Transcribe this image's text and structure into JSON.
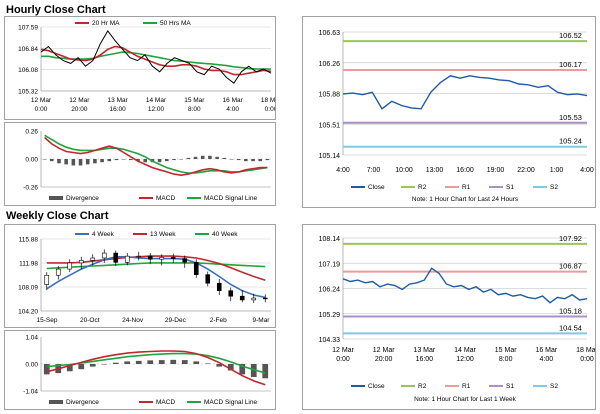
{
  "sections": {
    "hourly_title": "Hourly Close Chart",
    "weekly_title": "Weekly Close Chart"
  },
  "colors": {
    "close": "#1f5aa6",
    "ma_short": "#c0282e",
    "ma_long": "#22a33d",
    "r2": "#9bc55a",
    "r1": "#e89c9c",
    "s1": "#a890c8",
    "s2": "#7fc8e8",
    "divergence": "#555555",
    "macd": "#c0282e",
    "signal": "#22a33d",
    "week4": "#3a6fbf",
    "week13": "#c0282e",
    "week40": "#22a33d",
    "candle": "#000000"
  },
  "chart_data": [
    {
      "id": "hourly_price",
      "type": "line",
      "legend": [
        "20 Hr MA",
        "50 Hrs MA"
      ],
      "x_ticks": [
        "12 Mar\n0:00",
        "12 Mar\n20:00",
        "13 Mar\n16:00",
        "14 Mar\n12:00",
        "15 Mar\n8:00",
        "16 Mar\n4:00",
        "18 Mar\n0:00"
      ],
      "y_ticks": [
        "107.59",
        "106.84",
        "106.08",
        "105.32"
      ],
      "ylim": [
        105.32,
        107.59
      ],
      "series": [
        {
          "name": "Close",
          "values": [
            106.7,
            106.9,
            106.6,
            106.4,
            106.3,
            106.5,
            106.2,
            106.4,
            107.0,
            107.45,
            107.1,
            106.8,
            106.5,
            106.4,
            106.6,
            106.2,
            106.0,
            106.3,
            106.5,
            106.4,
            106.3,
            106.0,
            105.9,
            106.2,
            106.1,
            105.8,
            105.6,
            106.0,
            106.2,
            106.0,
            106.1,
            105.95
          ]
        },
        {
          "name": "20 Hr MA",
          "values": [
            106.8,
            106.75,
            106.65,
            106.55,
            106.45,
            106.42,
            106.4,
            106.45,
            106.6,
            106.8,
            106.9,
            106.85,
            106.7,
            106.55,
            106.45,
            106.35,
            106.25,
            106.2,
            106.2,
            106.25,
            106.25,
            106.2,
            106.1,
            106.05,
            106.05,
            106.0,
            105.9,
            105.9,
            105.95,
            106.0,
            106.05,
            106.02
          ]
        },
        {
          "name": "50 Hrs MA",
          "values": [
            106.55,
            106.55,
            106.5,
            106.48,
            106.45,
            106.45,
            106.45,
            106.48,
            106.55,
            106.6,
            106.65,
            106.7,
            106.68,
            106.65,
            106.6,
            106.55,
            106.5,
            106.45,
            106.4,
            106.38,
            106.35,
            106.32,
            106.3,
            106.28,
            106.25,
            106.22,
            106.18,
            106.15,
            106.12,
            106.1,
            106.1,
            106.1
          ]
        }
      ]
    },
    {
      "id": "hourly_macd",
      "type": "line",
      "legend": [
        "Divergence",
        "MACD",
        "MACD Signal Line"
      ],
      "y_ticks": [
        "0.26",
        "0.00",
        "-0.26"
      ],
      "ylim": [
        -0.26,
        0.26
      ],
      "series": [
        {
          "name": "Divergence",
          "values": [
            0.0,
            -0.02,
            -0.04,
            -0.05,
            -0.06,
            -0.06,
            -0.05,
            -0.04,
            -0.03,
            -0.02,
            -0.01,
            0.0,
            -0.01,
            -0.02,
            -0.03,
            -0.03,
            -0.03,
            -0.02,
            -0.01,
            0.0,
            0.01,
            0.02,
            0.03,
            0.03,
            0.02,
            0.01,
            0.0,
            -0.01,
            -0.02,
            -0.02,
            -0.02,
            -0.01
          ]
        },
        {
          "name": "MACD",
          "values": [
            0.2,
            0.14,
            0.1,
            0.07,
            0.06,
            0.05,
            0.06,
            0.08,
            0.1,
            0.12,
            0.1,
            0.06,
            0.02,
            -0.02,
            -0.05,
            -0.08,
            -0.1,
            -0.12,
            -0.14,
            -0.15,
            -0.14,
            -0.12,
            -0.1,
            -0.09,
            -0.1,
            -0.12,
            -0.13,
            -0.12,
            -0.1,
            -0.09,
            -0.08,
            -0.08
          ]
        },
        {
          "name": "MACD Signal Line",
          "values": [
            0.22,
            0.18,
            0.14,
            0.11,
            0.09,
            0.08,
            0.08,
            0.08,
            0.09,
            0.1,
            0.1,
            0.09,
            0.07,
            0.05,
            0.02,
            -0.02,
            -0.05,
            -0.08,
            -0.1,
            -0.12,
            -0.13,
            -0.13,
            -0.12,
            -0.11,
            -0.11,
            -0.11,
            -0.12,
            -0.12,
            -0.11,
            -0.1,
            -0.09,
            -0.08
          ]
        }
      ]
    },
    {
      "id": "hourly_24h",
      "type": "line",
      "x_ticks": [
        "4:00",
        "7:00",
        "10:00",
        "13:00",
        "16:00",
        "19:00",
        "22:00",
        "1:00",
        "4:00"
      ],
      "y_ticks": [
        "106.63",
        "106.26",
        "105.88",
        "105.51",
        "105.14"
      ],
      "ylim": [
        105.14,
        106.63
      ],
      "levels": [
        {
          "name": "R2",
          "value": 106.52,
          "label": "106.52"
        },
        {
          "name": "R1",
          "value": 106.17,
          "label": "106.17"
        },
        {
          "name": "S1",
          "value": 105.53,
          "label": "105.53"
        },
        {
          "name": "S2",
          "value": 105.24,
          "label": "105.24"
        }
      ],
      "series": [
        {
          "name": "Close",
          "values": [
            105.88,
            105.89,
            105.87,
            105.9,
            105.7,
            105.79,
            105.74,
            105.71,
            105.7,
            105.9,
            106.02,
            106.1,
            106.07,
            106.1,
            106.08,
            106.07,
            106.05,
            106.04,
            106.0,
            105.99,
            105.96,
            105.98,
            105.9,
            105.87,
            105.88,
            105.86
          ]
        }
      ],
      "legend": [
        "Close",
        "R2",
        "R1",
        "S1",
        "S2"
      ],
      "note": "Note: 1 Hour Chart for Last 24 Hours"
    },
    {
      "id": "weekly_price",
      "type": "line",
      "legend": [
        "4 Week",
        "13 Week",
        "40 Week"
      ],
      "x_ticks": [
        "15-Sep",
        "20-Oct",
        "24-Nov",
        "29-Dec",
        "2-Feb",
        "9-Mar"
      ],
      "y_ticks": [
        "115.88",
        "111.98",
        "108.09",
        "104.20"
      ],
      "ylim": [
        104.2,
        115.88
      ],
      "candles": [
        {
          "o": 108.5,
          "h": 110.5,
          "l": 107.6,
          "c": 110.0
        },
        {
          "o": 110.0,
          "h": 111.5,
          "l": 109.3,
          "c": 111.0
        },
        {
          "o": 111.0,
          "h": 112.6,
          "l": 110.5,
          "c": 112.0
        },
        {
          "o": 112.0,
          "h": 113.0,
          "l": 111.0,
          "c": 112.4
        },
        {
          "o": 112.4,
          "h": 113.4,
          "l": 111.6,
          "c": 112.8
        },
        {
          "o": 112.8,
          "h": 114.2,
          "l": 112.0,
          "c": 113.6
        },
        {
          "o": 113.6,
          "h": 114.0,
          "l": 111.5,
          "c": 112.1
        },
        {
          "o": 112.1,
          "h": 113.6,
          "l": 111.6,
          "c": 113.1
        },
        {
          "o": 113.1,
          "h": 113.8,
          "l": 112.4,
          "c": 113.1
        },
        {
          "o": 113.1,
          "h": 113.6,
          "l": 111.8,
          "c": 112.6
        },
        {
          "o": 112.6,
          "h": 113.4,
          "l": 111.6,
          "c": 112.9
        },
        {
          "o": 112.9,
          "h": 113.5,
          "l": 112.0,
          "c": 112.7
        },
        {
          "o": 112.7,
          "h": 113.2,
          "l": 111.2,
          "c": 112.1
        },
        {
          "o": 112.1,
          "h": 112.6,
          "l": 109.6,
          "c": 110.1
        },
        {
          "o": 110.1,
          "h": 110.6,
          "l": 108.2,
          "c": 108.7
        },
        {
          "o": 108.7,
          "h": 109.4,
          "l": 106.8,
          "c": 107.5
        },
        {
          "o": 107.5,
          "h": 108.0,
          "l": 105.8,
          "c": 106.6
        },
        {
          "o": 106.6,
          "h": 107.6,
          "l": 105.6,
          "c": 106.0
        },
        {
          "o": 106.0,
          "h": 107.0,
          "l": 105.5,
          "c": 106.3
        },
        {
          "o": 106.3,
          "h": 106.9,
          "l": 105.6,
          "c": 106.2
        }
      ],
      "series": [
        {
          "name": "4 Week",
          "values": [
            107.8,
            109.0,
            110.0,
            111.0,
            111.8,
            112.5,
            113.0,
            113.0,
            112.8,
            112.7,
            112.7,
            112.7,
            112.6,
            112.0,
            111.0,
            109.8,
            108.5,
            107.5,
            106.8,
            106.4
          ]
        },
        {
          "name": "13 Week",
          "values": [
            112.0,
            112.0,
            112.0,
            112.1,
            112.3,
            112.5,
            112.7,
            112.9,
            113.0,
            113.1,
            113.1,
            113.1,
            113.0,
            112.8,
            112.4,
            111.9,
            111.2,
            110.5,
            109.8,
            109.2
          ]
        },
        {
          "name": "40 Week",
          "values": [
            111.1,
            111.2,
            111.3,
            111.4,
            111.5,
            111.6,
            111.7,
            111.8,
            111.9,
            112.0,
            112.0,
            112.0,
            112.0,
            112.0,
            111.9,
            111.8,
            111.7,
            111.6,
            111.5,
            111.4
          ]
        }
      ]
    },
    {
      "id": "weekly_macd",
      "type": "line",
      "legend": [
        "Divergence",
        "MACD",
        "MACD Signal Line"
      ],
      "y_ticks": [
        "1.04",
        "0.00",
        "-1.04"
      ],
      "ylim": [
        -1.04,
        1.04
      ],
      "series": [
        {
          "name": "Divergence",
          "values": [
            -0.4,
            -0.35,
            -0.28,
            -0.2,
            -0.1,
            -0.02,
            0.05,
            0.1,
            0.12,
            0.14,
            0.15,
            0.16,
            0.15,
            0.1,
            0.02,
            -0.1,
            -0.25,
            -0.4,
            -0.5,
            -0.55
          ]
        },
        {
          "name": "MACD",
          "values": [
            -0.3,
            -0.18,
            -0.06,
            0.06,
            0.18,
            0.28,
            0.36,
            0.42,
            0.46,
            0.48,
            0.5,
            0.5,
            0.48,
            0.4,
            0.25,
            0.05,
            -0.2,
            -0.45,
            -0.65,
            -0.8
          ]
        },
        {
          "name": "MACD Signal Line",
          "values": [
            -0.1,
            -0.06,
            -0.02,
            0.04,
            0.1,
            0.16,
            0.22,
            0.28,
            0.32,
            0.36,
            0.38,
            0.4,
            0.4,
            0.38,
            0.32,
            0.22,
            0.08,
            -0.08,
            -0.22,
            -0.35
          ]
        }
      ]
    },
    {
      "id": "weekly_1w",
      "type": "line",
      "x_ticks": [
        "12 Mar\n0:00",
        "12 Mar\n20:00",
        "13 Mar\n16:00",
        "14 Mar\n12:00",
        "15 Mar\n8:00",
        "16 Mar\n4:00",
        "18 Mar\n0:00"
      ],
      "y_ticks": [
        "108.14",
        "107.19",
        "106.24",
        "105.29",
        "104.33"
      ],
      "ylim": [
        104.33,
        108.14
      ],
      "levels": [
        {
          "name": "R2",
          "value": 107.92,
          "label": "107.92"
        },
        {
          "name": "R1",
          "value": 106.87,
          "label": "106.87"
        },
        {
          "name": "S1",
          "value": 105.18,
          "label": "105.18"
        },
        {
          "name": "S2",
          "value": 104.54,
          "label": "104.54"
        }
      ],
      "series": [
        {
          "name": "Close",
          "values": [
            106.6,
            106.5,
            106.55,
            106.45,
            106.5,
            106.3,
            106.4,
            106.35,
            106.2,
            106.4,
            106.45,
            106.55,
            107.0,
            106.8,
            106.4,
            106.3,
            106.35,
            106.2,
            106.3,
            106.1,
            106.2,
            106.0,
            106.05,
            105.95,
            106.0,
            105.9,
            105.85,
            105.95,
            105.7,
            105.9,
            105.85,
            106.0,
            105.8,
            105.85
          ]
        }
      ],
      "legend": [
        "Close",
        "R2",
        "R1",
        "S1",
        "S2"
      ],
      "note": "Note: 1 Hour Chart for Last 1 Week"
    }
  ]
}
